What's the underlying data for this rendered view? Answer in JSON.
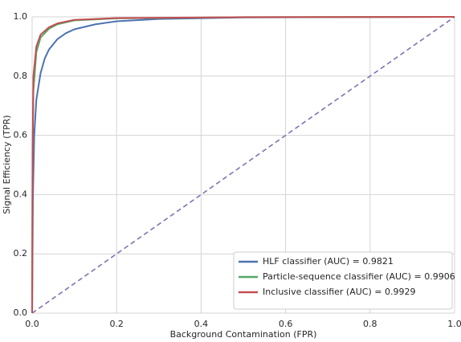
{
  "chart_data": {
    "type": "line",
    "xlabel": "Background Contamination (FPR)",
    "ylabel": "Signal Efficiency (TPR)",
    "xlim": [
      0,
      1
    ],
    "ylim": [
      0,
      1
    ],
    "xticks": [
      {
        "value": 0,
        "label": "0.0"
      },
      0.2,
      0.4,
      0.6,
      0.8,
      {
        "value": 1,
        "label": "1.0"
      }
    ],
    "yticks": [
      {
        "value": 0,
        "label": "0.0"
      },
      0.2,
      0.4,
      0.6,
      0.8,
      {
        "value": 1,
        "label": "1.0"
      }
    ],
    "grid": true,
    "legend": "lower right",
    "series": [
      {
        "x": [
          0,
          1
        ],
        "values": [
          0,
          1
        ],
        "color": "#8172b2",
        "dashed": true
      },
      {
        "name": "HLF classifier (AUC) = 0.9821",
        "color": "#4c72b0",
        "x": [
          0,
          0.002,
          0.005,
          0.01,
          0.02,
          0.03,
          0.04,
          0.06,
          0.08,
          0.1,
          0.15,
          0.2,
          0.3,
          0.5,
          1
        ],
        "values": [
          0,
          0.4,
          0.6,
          0.72,
          0.81,
          0.86,
          0.89,
          0.925,
          0.945,
          0.958,
          0.975,
          0.985,
          0.993,
          0.998,
          1
        ]
      },
      {
        "name": "Particle-sequence classifier (AUC) = 0.9906",
        "color": "#55a868",
        "x": [
          0,
          0.001,
          0.003,
          0.01,
          0.02,
          0.04,
          0.06,
          0.1,
          0.2,
          0.5,
          1
        ],
        "values": [
          0,
          0.5,
          0.75,
          0.88,
          0.93,
          0.96,
          0.975,
          0.988,
          0.995,
          0.999,
          1
        ]
      },
      {
        "name": "Inclusive classifier (AUC) = 0.9929",
        "color": "#c44e52",
        "x": [
          0,
          0.001,
          0.003,
          0.01,
          0.02,
          0.04,
          0.06,
          0.1,
          0.2,
          0.5,
          1
        ],
        "values": [
          0,
          0.55,
          0.8,
          0.9,
          0.94,
          0.965,
          0.978,
          0.99,
          0.996,
          0.999,
          1
        ]
      }
    ]
  }
}
